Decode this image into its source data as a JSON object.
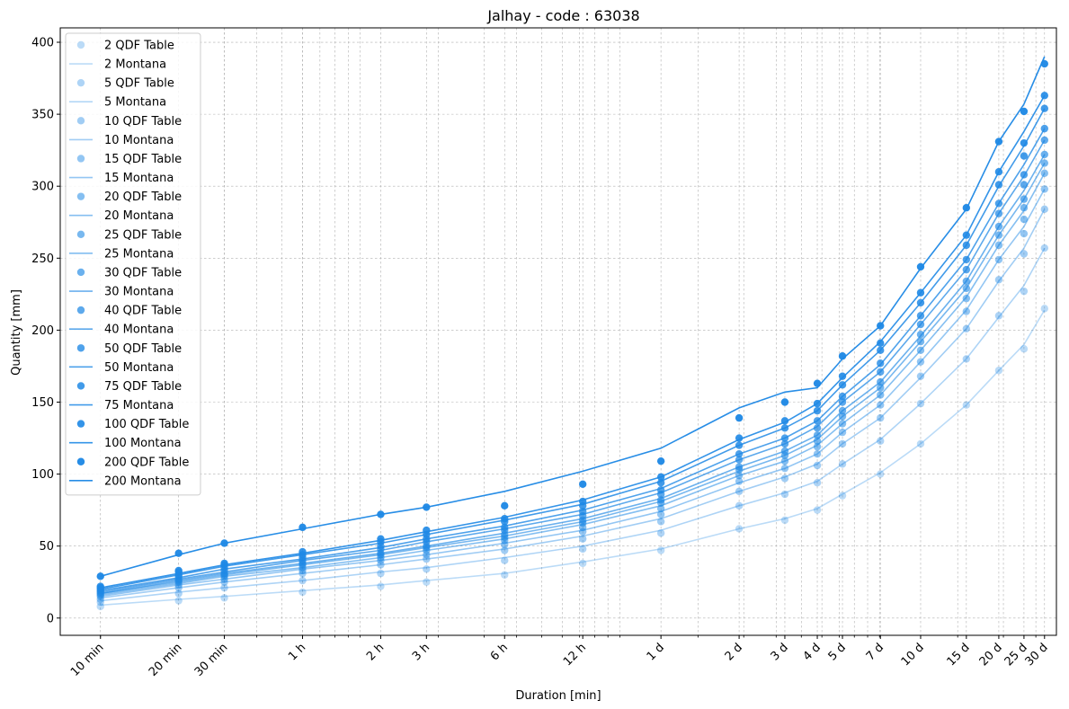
{
  "chart_data": {
    "type": "scatter",
    "title": "Jalhay - code : 63038",
    "xlabel": "Duration [min]",
    "ylabel": "Quantity [mm]",
    "xscale": "log",
    "xlim_min": [
      7,
      48000
    ],
    "ylim": [
      -12,
      410
    ],
    "grid": true,
    "legend_position": "top-left",
    "y_ticks": [
      0,
      50,
      100,
      150,
      200,
      250,
      300,
      350,
      400
    ],
    "x_ticks": [
      {
        "label": "10 min",
        "minutes": 10
      },
      {
        "label": "20 min",
        "minutes": 20
      },
      {
        "label": "30 min",
        "minutes": 30
      },
      {
        "label": "1 h",
        "minutes": 60
      },
      {
        "label": "2 h",
        "minutes": 120
      },
      {
        "label": "3 h",
        "minutes": 180
      },
      {
        "label": "6 h",
        "minutes": 360
      },
      {
        "label": "12 h",
        "minutes": 720
      },
      {
        "label": "1 d",
        "minutes": 1440
      },
      {
        "label": "2 d",
        "minutes": 2880
      },
      {
        "label": "3 d",
        "minutes": 4320
      },
      {
        "label": "4 d",
        "minutes": 5760
      },
      {
        "label": "5 d",
        "minutes": 7200
      },
      {
        "label": "7 d",
        "minutes": 10080
      },
      {
        "label": "10 d",
        "minutes": 14400
      },
      {
        "label": "15 d",
        "minutes": 21600
      },
      {
        "label": "20 d",
        "minutes": 28800
      },
      {
        "label": "25 d",
        "minutes": 36000
      },
      {
        "label": "30 d",
        "minutes": 43200
      }
    ],
    "scatter_durations_min": [
      10,
      20,
      30,
      60,
      120,
      180,
      360,
      720,
      1440,
      2880,
      4320,
      5760,
      7200,
      10080,
      14400,
      21600,
      28800,
      36000,
      43200
    ],
    "montana_durations_min": [
      10,
      20,
      30,
      60,
      120,
      180,
      360,
      720,
      1440,
      2880,
      4320,
      5760,
      7200,
      10080,
      14400,
      21600,
      28800,
      36000,
      43200
    ],
    "color": "#1e88e5",
    "series": [
      {
        "return_period": "2",
        "table_name": "2 QDF Table",
        "montana_name": "2 Montana",
        "alpha": 0.3,
        "table_values": [
          8,
          12,
          14,
          18,
          22,
          25,
          30,
          38,
          47,
          62,
          68,
          75,
          85,
          100,
          121,
          148,
          172,
          187,
          215
        ],
        "montana_values": [
          9,
          13,
          15,
          19,
          23,
          26,
          31,
          39,
          48,
          62,
          69,
          76,
          86,
          101,
          121,
          148,
          172,
          190,
          214
        ]
      },
      {
        "return_period": "5",
        "table_name": "5 QDF Table",
        "montana_name": "5 Montana",
        "alpha": 0.36,
        "table_values": [
          11,
          17,
          21,
          26,
          31,
          34,
          40,
          48,
          59,
          78,
          86,
          94,
          107,
          123,
          149,
          180,
          210,
          227,
          257
        ],
        "montana_values": [
          12,
          18,
          21,
          26,
          32,
          35,
          42,
          50,
          61,
          78,
          87,
          95,
          107,
          124,
          149,
          180,
          209,
          231,
          257
        ]
      },
      {
        "return_period": "10",
        "table_name": "10 QDF Table",
        "montana_name": "10 Montana",
        "alpha": 0.42,
        "table_values": [
          13,
          21,
          25,
          31,
          37,
          41,
          47,
          55,
          67,
          88,
          97,
          106,
          121,
          139,
          168,
          201,
          235,
          253,
          284
        ],
        "montana_values": [
          14,
          21,
          25,
          31,
          37,
          41,
          48,
          57,
          69,
          88,
          98,
          107,
          121,
          139,
          167,
          201,
          234,
          257,
          284
        ]
      },
      {
        "return_period": "15",
        "table_name": "15 QDF Table",
        "montana_name": "15 Montana",
        "alpha": 0.48,
        "table_values": [
          15,
          23,
          27,
          33,
          40,
          44,
          51,
          60,
          72,
          95,
          104,
          114,
          129,
          148,
          178,
          213,
          249,
          267,
          298
        ],
        "montana_values": [
          15,
          23,
          27,
          34,
          40,
          44,
          52,
          61,
          74,
          94,
          104,
          114,
          129,
          148,
          178,
          214,
          249,
          272,
          298
        ]
      },
      {
        "return_period": "20",
        "table_name": "20 QDF Table",
        "montana_name": "20 Montana",
        "alpha": 0.54,
        "table_values": [
          16,
          25,
          29,
          35,
          42,
          47,
          54,
          63,
          76,
          99,
          109,
          119,
          135,
          155,
          186,
          222,
          259,
          277,
          309
        ],
        "montana_values": [
          16,
          24,
          29,
          35,
          42,
          47,
          55,
          65,
          78,
          99,
          109,
          120,
          135,
          155,
          186,
          223,
          259,
          283,
          309
        ]
      },
      {
        "return_period": "25",
        "table_name": "25 QDF Table",
        "montana_name": "25 Montana",
        "alpha": 0.6,
        "table_values": [
          17,
          26,
          30,
          37,
          44,
          49,
          56,
          66,
          80,
          103,
          113,
          123,
          140,
          160,
          192,
          229,
          266,
          285,
          316
        ],
        "montana_values": [
          17,
          25,
          30,
          37,
          44,
          49,
          57,
          67,
          81,
          102,
          113,
          124,
          140,
          160,
          192,
          229,
          266,
          291,
          316
        ]
      },
      {
        "return_period": "30",
        "table_name": "30 QDF Table",
        "montana_name": "30 Montana",
        "alpha": 0.66,
        "table_values": [
          18,
          27,
          31,
          38,
          45,
          50,
          58,
          68,
          82,
          105,
          116,
          127,
          144,
          164,
          197,
          234,
          272,
          291,
          322
        ],
        "montana_values": [
          17,
          26,
          31,
          38,
          45,
          50,
          59,
          69,
          83,
          105,
          116,
          127,
          144,
          164,
          196,
          234,
          272,
          297,
          322
        ]
      },
      {
        "return_period": "40",
        "table_name": "40 QDF Table",
        "montana_name": "40 Montana",
        "alpha": 0.72,
        "table_values": [
          19,
          29,
          33,
          40,
          48,
          53,
          61,
          71,
          86,
          110,
          121,
          132,
          150,
          171,
          204,
          242,
          281,
          301,
          332
        ],
        "montana_values": [
          18,
          27,
          32,
          40,
          47,
          53,
          62,
          72,
          87,
          110,
          121,
          133,
          150,
          171,
          204,
          242,
          281,
          307,
          332
        ]
      },
      {
        "return_period": "50",
        "table_name": "50 QDF Table",
        "montana_name": "50 Montana",
        "alpha": 0.78,
        "table_values": [
          20,
          30,
          35,
          42,
          50,
          55,
          63,
          74,
          89,
          114,
          125,
          137,
          154,
          177,
          210,
          249,
          288,
          308,
          340
        ],
        "montana_values": [
          19,
          28,
          34,
          41,
          49,
          55,
          64,
          75,
          90,
          114,
          125,
          137,
          154,
          176,
          210,
          249,
          288,
          315,
          340
        ]
      },
      {
        "return_period": "75",
        "table_name": "75 QDF Table",
        "montana_name": "75 Montana",
        "alpha": 0.84,
        "table_values": [
          21,
          32,
          37,
          44,
          53,
          58,
          67,
          78,
          94,
          120,
          132,
          144,
          162,
          186,
          219,
          259,
          301,
          321,
          354
        ],
        "montana_values": [
          20,
          30,
          36,
          44,
          52,
          58,
          68,
          79,
          95,
          120,
          132,
          144,
          162,
          186,
          219,
          259,
          300,
          328,
          354
        ]
      },
      {
        "return_period": "100",
        "table_name": "100 QDF Table",
        "montana_name": "100 Montana",
        "alpha": 0.9,
        "table_values": [
          22,
          33,
          38,
          46,
          55,
          61,
          69,
          81,
          98,
          125,
          137,
          149,
          168,
          191,
          226,
          266,
          310,
          330,
          363
        ],
        "montana_values": [
          21,
          31,
          37,
          45,
          54,
          60,
          70,
          82,
          98,
          124,
          136,
          149,
          167,
          192,
          226,
          266,
          310,
          338,
          363
        ]
      },
      {
        "return_period": "200",
        "table_name": "200 QDF Table",
        "montana_name": "200 Montana",
        "alpha": 0.96,
        "table_values": [
          29,
          45,
          52,
          63,
          72,
          77,
          78,
          93,
          109,
          139,
          150,
          163,
          182,
          203,
          244,
          285,
          331,
          352,
          385
        ],
        "montana_values": [
          29,
          44,
          52,
          62,
          72,
          77,
          88,
          102,
          118,
          146,
          157,
          160,
          180,
          203,
          243,
          284,
          331,
          357,
          390
        ]
      }
    ]
  }
}
